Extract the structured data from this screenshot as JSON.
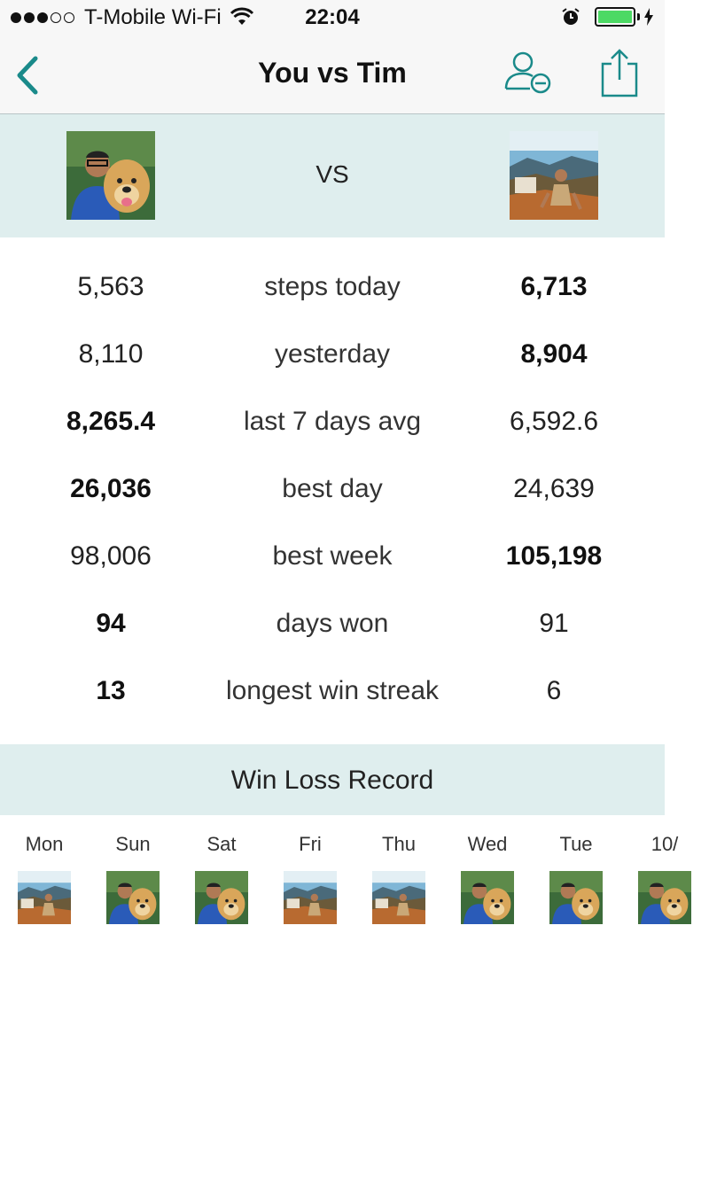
{
  "status_bar": {
    "carrier": "T-Mobile Wi-Fi",
    "time": "22:04",
    "battery_color": "#4cd964"
  },
  "nav": {
    "title": "You vs Tim",
    "accent_color": "#1a8a8a"
  },
  "vs": {
    "label": "VS"
  },
  "stats": [
    {
      "left": "5,563",
      "label": "steps today",
      "right": "6,713",
      "winner": "right"
    },
    {
      "left": "8,110",
      "label": "yesterday",
      "right": "8,904",
      "winner": "right"
    },
    {
      "left": "8,265.4",
      "label": "last 7 days avg",
      "right": "6,592.6",
      "winner": "left"
    },
    {
      "left": "26,036",
      "label": "best day",
      "right": "24,639",
      "winner": "left"
    },
    {
      "left": "98,006",
      "label": "best week",
      "right": "105,198",
      "winner": "right"
    },
    {
      "left": "94",
      "label": "days won",
      "right": "91",
      "winner": "left"
    },
    {
      "left": "13",
      "label": "longest win streak",
      "right": "6",
      "winner": "left"
    }
  ],
  "win_loss": {
    "title": "Win Loss Record",
    "days": [
      {
        "label": "Mon",
        "winner": "tim"
      },
      {
        "label": "Sun",
        "winner": "you"
      },
      {
        "label": "Sat",
        "winner": "you"
      },
      {
        "label": "Fri",
        "winner": "tim"
      },
      {
        "label": "Thu",
        "winner": "tim"
      },
      {
        "label": "Wed",
        "winner": "you"
      },
      {
        "label": "Tue",
        "winner": "you"
      },
      {
        "label": "10/",
        "winner": "you"
      }
    ]
  }
}
